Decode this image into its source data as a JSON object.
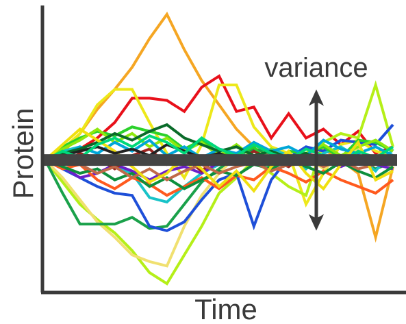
{
  "chart_data": {
    "type": "line",
    "title": "",
    "xlabel": "Time",
    "ylabel": "Protein",
    "annotation": "variance",
    "grid": false,
    "legend": "none",
    "xlim": [
      0,
      20
    ],
    "ylim": [
      -6,
      7
    ],
    "x": [
      0,
      1,
      2,
      3,
      4,
      5,
      6,
      7,
      8,
      9,
      10,
      11,
      12,
      13,
      14,
      15,
      16,
      17,
      18,
      19,
      20
    ],
    "mean": {
      "value": 0,
      "color": "#444444"
    },
    "variance_range": [
      -3.2,
      3.2
    ],
    "series": [
      {
        "color": "#f5a623",
        "values": [
          0,
          0.3,
          1.2,
          2.3,
          3.2,
          4.2,
          5.5,
          6.6,
          5.0,
          3.6,
          2.5,
          1.4,
          0.6,
          0.3,
          0.0,
          -0.3,
          0.5,
          0.0,
          -0.6,
          -3.5,
          -0.3
        ]
      },
      {
        "color": "#e8101a",
        "values": [
          0,
          0.3,
          0.5,
          1.0,
          1.7,
          2.8,
          2.8,
          2.7,
          2.2,
          3.3,
          3.8,
          2.2,
          2.4,
          1.0,
          2.1,
          1.0,
          1.4,
          0.7,
          1.3,
          0.3,
          0.6
        ]
      },
      {
        "color": "#ede81a",
        "values": [
          0,
          0.5,
          1.2,
          2.5,
          3.2,
          3.2,
          1.7,
          0.3,
          -0.8,
          0.7,
          3.4,
          3.4,
          1.5,
          0.6,
          0.3,
          -2.0,
          -0.6,
          0.7,
          0.9,
          0.4,
          0.2
        ]
      },
      {
        "color": "#b5ef18",
        "values": [
          0,
          -1.0,
          -2.0,
          -2.7,
          -3.3,
          -4.1,
          -5.1,
          -5.6,
          -4.3,
          -3.0,
          -1.5,
          -0.8,
          0.0,
          -0.6,
          -1.2,
          -1.6,
          0.8,
          1.2,
          1.0,
          3.4,
          0.6
        ]
      },
      {
        "color": "#f0e070",
        "values": [
          0,
          -0.8,
          -1.8,
          -2.8,
          -3.5,
          -4.3,
          -4.6,
          -4.8,
          -3.0,
          -1.6,
          -0.6,
          0.2,
          0.6,
          0.1,
          -0.3,
          0.2,
          -0.4,
          0.1,
          0.5,
          0.0,
          -0.3
        ]
      },
      {
        "color": "#1aa14a",
        "values": [
          0,
          -1.5,
          -2.9,
          -2.9,
          -2.9,
          -2.6,
          -3.1,
          -3.0,
          -2.0,
          -1.0,
          -0.4,
          0.2,
          0.5,
          0.3,
          0.0,
          0.2,
          -0.1,
          0.2,
          0.0,
          -0.4,
          -0.1
        ]
      },
      {
        "color": "#1e4fd8",
        "values": [
          0,
          -0.4,
          -0.8,
          -1.2,
          -1.5,
          -1.6,
          -3.0,
          -3.2,
          -2.8,
          -1.8,
          -0.9,
          -0.6,
          -3.0,
          -0.9,
          0.1,
          0.6,
          0.4,
          0.9,
          0.8,
          0.7,
          1.6
        ]
      },
      {
        "color": "#18c3c8",
        "values": [
          0,
          0.4,
          0.6,
          0.3,
          -0.3,
          -0.6,
          -1.7,
          -1.9,
          -1.2,
          -0.6,
          -0.2,
          0.3,
          0.1,
          0.5,
          0.2,
          -0.4,
          0.3,
          0.6,
          0.1,
          -0.5,
          0.5
        ]
      },
      {
        "color": "#2bd12b",
        "values": [
          0,
          0.6,
          1.0,
          1.3,
          1.1,
          1.5,
          1.3,
          1.1,
          0.5,
          0.9,
          0.3,
          0.2,
          0.6,
          -0.4,
          0.4,
          0.3,
          0.6,
          0.1,
          0.9,
          0.8,
          0.4
        ]
      },
      {
        "color": "#6b1fc8",
        "values": [
          0,
          -0.3,
          -0.8,
          -0.6,
          -0.2,
          -0.5,
          -0.9,
          -0.5,
          -0.3,
          -0.6,
          -0.1,
          0.2,
          0.0,
          -0.2,
          0.1,
          0.3,
          -0.1,
          -0.3,
          0.0,
          -0.2,
          -0.4
        ]
      },
      {
        "color": "#9c2420",
        "values": [
          0,
          -0.2,
          0.3,
          0.1,
          -0.4,
          0.2,
          0.5,
          -0.2,
          0.1,
          -0.5,
          0.2,
          -0.1,
          0.4,
          0.0,
          -0.3,
          0.3,
          0.1,
          -0.2,
          0.2,
          0.0,
          0.1
        ]
      },
      {
        "color": "#ff5a1e",
        "values": [
          0,
          -0.4,
          -0.2,
          -0.9,
          -1.3,
          -0.8,
          -1.1,
          -1.6,
          -1.2,
          -0.8,
          -1.3,
          -0.7,
          -0.9,
          -0.3,
          -0.6,
          -1.0,
          -0.5,
          -0.9,
          -1.2,
          -1.5,
          -0.9
        ]
      },
      {
        "color": "#0e8f3c",
        "values": [
          0,
          -0.3,
          -0.6,
          -0.4,
          -0.9,
          -0.6,
          -1.2,
          -0.8,
          -1.3,
          -0.9,
          -0.5,
          -0.7,
          -0.2,
          -0.4,
          0.0,
          -0.3,
          -0.6,
          -0.1,
          -0.5,
          -0.8,
          -0.3
        ]
      },
      {
        "color": "#8fe80e",
        "values": [
          0,
          0.5,
          0.9,
          1.4,
          0.8,
          1.2,
          0.6,
          1.0,
          0.4,
          0.8,
          0.2,
          0.7,
          0.1,
          0.5,
          -0.1,
          0.3,
          0.7,
          0.2,
          0.6,
          0.9,
          0.4
        ]
      },
      {
        "color": "#00a6d8",
        "values": [
          0,
          0.2,
          0.6,
          0.3,
          0.8,
          0.4,
          0.9,
          0.2,
          0.6,
          0.1,
          0.5,
          0.3,
          0.8,
          0.4,
          0.6,
          0.2,
          0.9,
          0.5,
          0.3,
          0.6,
          0.2
        ]
      },
      {
        "color": "#c06a48",
        "values": [
          0,
          0.1,
          -0.2,
          -0.6,
          -0.3,
          -0.8,
          -0.4,
          -0.9,
          -0.5,
          -0.2,
          -0.6,
          -0.3,
          -0.1,
          -0.5,
          -0.2,
          0.1,
          -0.3,
          0.0,
          -0.4,
          -0.2,
          -0.1
        ]
      },
      {
        "color": "#0a6b2a",
        "values": [
          0,
          0.3,
          0.5,
          0.8,
          1.2,
          0.9,
          1.3,
          1.6,
          1.0,
          0.7,
          0.4,
          0.6,
          0.2,
          0.4,
          0.1,
          0.3,
          -0.1,
          0.2,
          0.0,
          0.2,
          0.1
        ]
      },
      {
        "color": "#f0e010",
        "values": [
          0,
          0.7,
          1.4,
          0.9,
          0.4,
          -0.3,
          -1.0,
          -0.6,
          0.2,
          -0.4,
          -1.2,
          -0.5,
          -1.4,
          -0.3,
          0.4,
          -0.6,
          -1.3,
          -0.2,
          0.8,
          -0.9,
          -0.5
        ]
      },
      {
        "color": "#222222",
        "values": [
          0,
          0.2,
          0.4,
          0.6,
          0.3,
          0.5,
          0.2,
          0.7,
          0.4,
          0.1,
          0.3,
          0.0,
          0.2,
          -0.1,
          0.1,
          -0.2,
          0.0,
          0.1,
          -0.1,
          0.0,
          0.1
        ]
      },
      {
        "color": "#00d87a",
        "values": [
          0,
          0.4,
          0.1,
          0.7,
          1.0,
          0.6,
          1.1,
          0.8,
          0.3,
          1.0,
          0.5,
          0.2,
          0.7,
          0.3,
          0.0,
          0.5,
          0.2,
          -0.2,
          0.4,
          0.1,
          0.6
        ]
      }
    ]
  }
}
